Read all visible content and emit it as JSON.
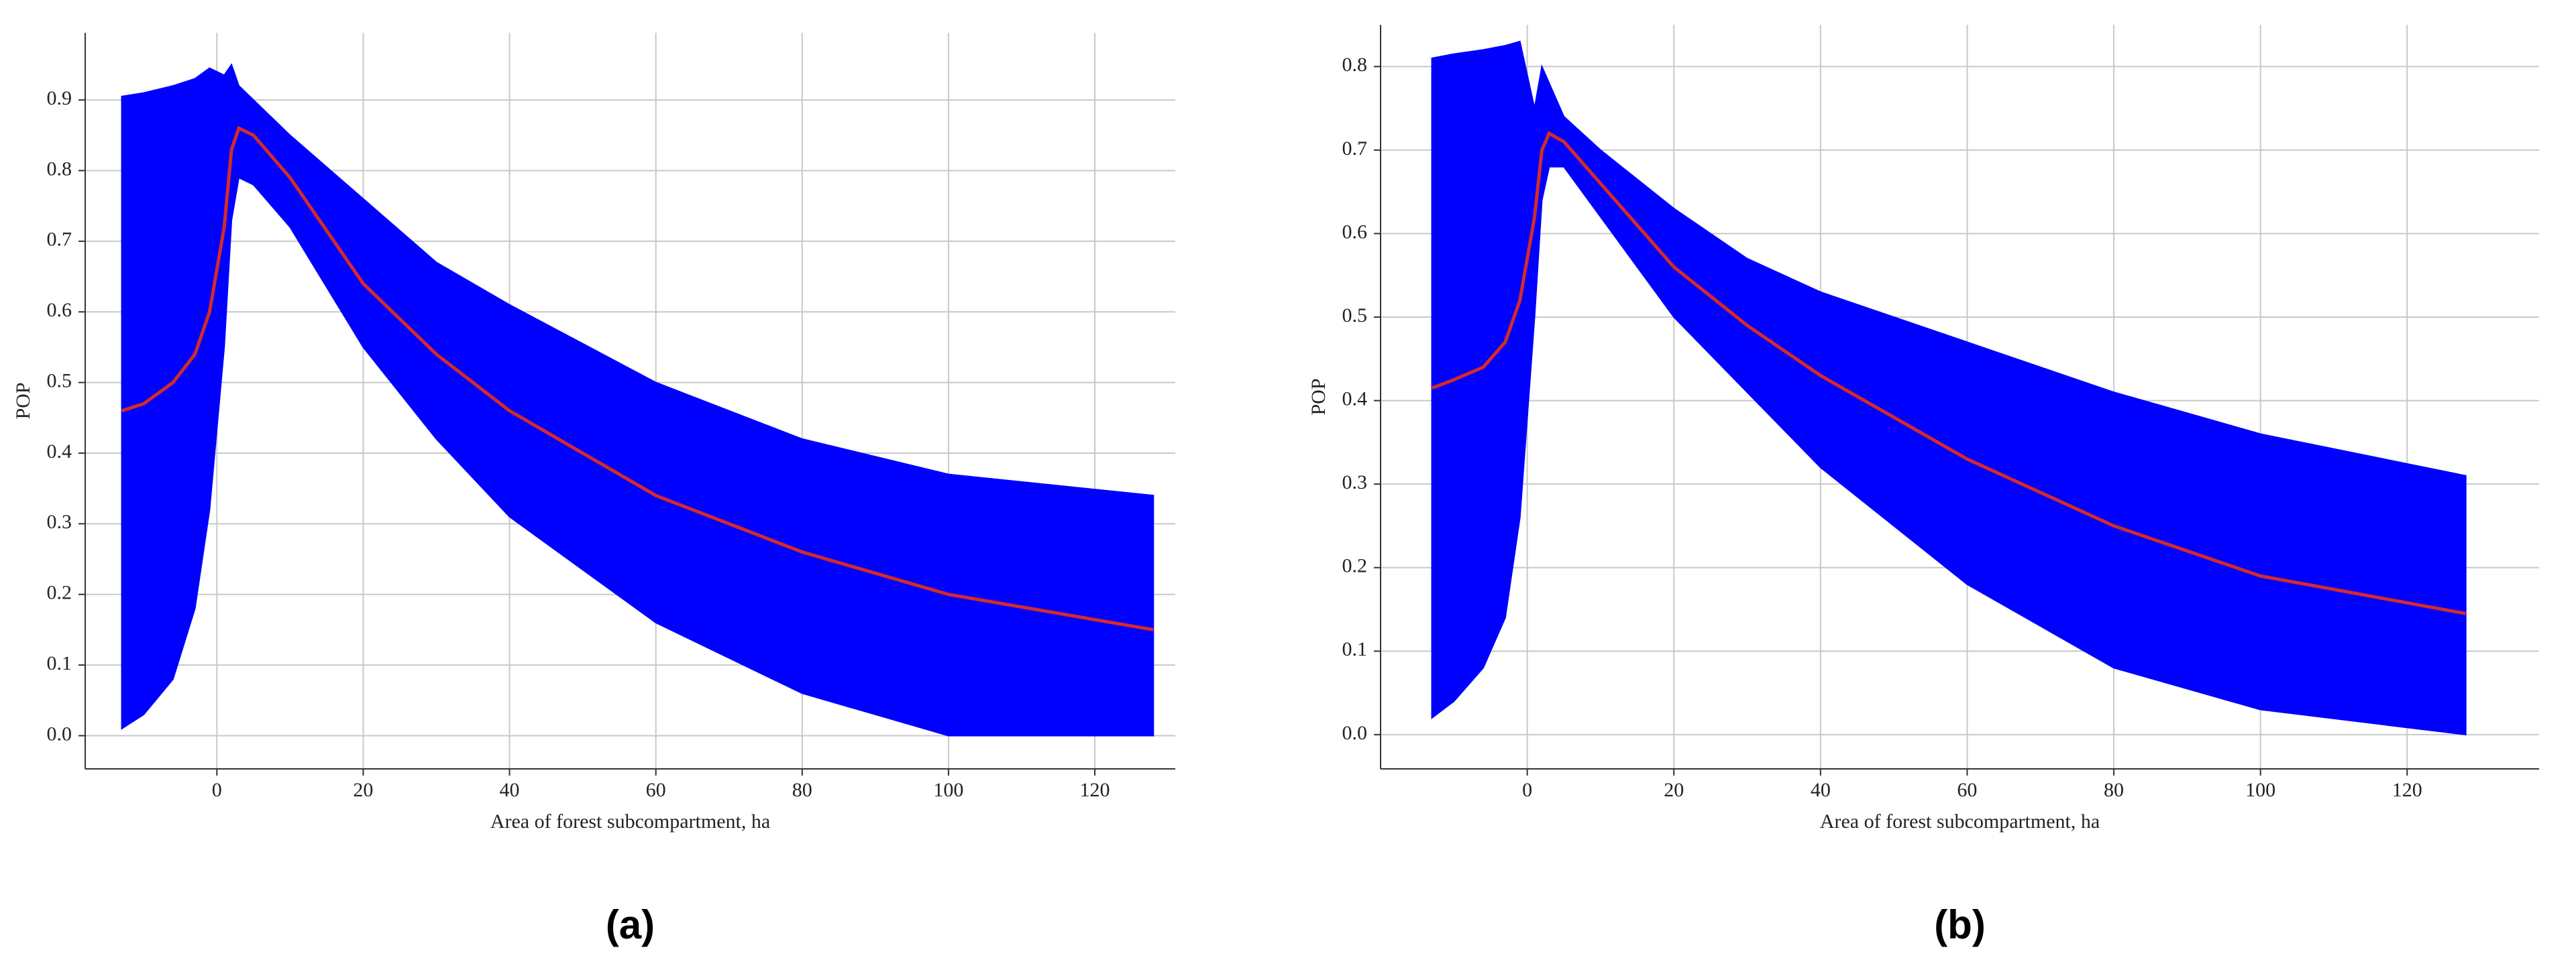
{
  "chart_data": [
    {
      "type": "band",
      "label": "(a)",
      "ylabel": "POP",
      "xlabel": "Area of forest subcompartment, ha",
      "x": [
        -13,
        -10,
        -6,
        -3,
        -1,
        1,
        2,
        3,
        5,
        10,
        20,
        30,
        40,
        60,
        80,
        100,
        128
      ],
      "upper": [
        0.905,
        0.91,
        0.92,
        0.93,
        0.945,
        0.935,
        0.95,
        0.92,
        0.9,
        0.85,
        0.76,
        0.67,
        0.61,
        0.5,
        0.42,
        0.37,
        0.34
      ],
      "lower": [
        0.01,
        0.03,
        0.08,
        0.18,
        0.32,
        0.55,
        0.73,
        0.79,
        0.78,
        0.72,
        0.55,
        0.42,
        0.31,
        0.16,
        0.06,
        0.0,
        0.0
      ],
      "values": [
        0.46,
        0.47,
        0.5,
        0.54,
        0.6,
        0.72,
        0.83,
        0.86,
        0.85,
        0.79,
        0.64,
        0.54,
        0.46,
        0.34,
        0.26,
        0.2,
        0.15
      ],
      "band_color": "#0000ff",
      "color": "#d42a2a",
      "xlim": [
        -18,
        131
      ],
      "ylim": [
        -0.047,
        0.995
      ],
      "xticks": [
        0,
        20,
        40,
        60,
        80,
        100,
        120
      ],
      "yticks": [
        {
          "value": 0,
          "label": "0.0"
        },
        0.1,
        0.2,
        0.3,
        0.4,
        0.5,
        0.6,
        0.7,
        0.8,
        0.9
      ],
      "grid": true
    },
    {
      "type": "band",
      "label": "(b)",
      "ylabel": "POP",
      "xlabel": "Area of forest subcompartment, ha",
      "x": [
        -13,
        -10,
        -6,
        -3,
        -1,
        1,
        2,
        3,
        5,
        10,
        20,
        30,
        40,
        60,
        80,
        100,
        128
      ],
      "upper": [
        0.81,
        0.815,
        0.82,
        0.825,
        0.83,
        0.75,
        0.8,
        0.78,
        0.74,
        0.7,
        0.63,
        0.57,
        0.53,
        0.47,
        0.41,
        0.36,
        0.31
      ],
      "lower": [
        0.02,
        0.04,
        0.08,
        0.14,
        0.26,
        0.5,
        0.64,
        0.68,
        0.68,
        0.62,
        0.5,
        0.41,
        0.32,
        0.18,
        0.08,
        0.03,
        0.0
      ],
      "values": [
        0.415,
        0.425,
        0.44,
        0.47,
        0.52,
        0.62,
        0.7,
        0.72,
        0.71,
        0.66,
        0.56,
        0.49,
        0.43,
        0.33,
        0.25,
        0.19,
        0.145
      ],
      "band_color": "#0000ff",
      "color": "#d42a2a",
      "xlim": [
        -20,
        138
      ],
      "ylim": [
        -0.041,
        0.85
      ],
      "xticks": [
        0,
        20,
        40,
        60,
        80,
        100,
        120
      ],
      "yticks": [
        {
          "value": 0,
          "label": "0.0"
        },
        0.1,
        0.2,
        0.3,
        0.4,
        0.5,
        0.6,
        0.7,
        0.8
      ],
      "grid": true
    }
  ]
}
